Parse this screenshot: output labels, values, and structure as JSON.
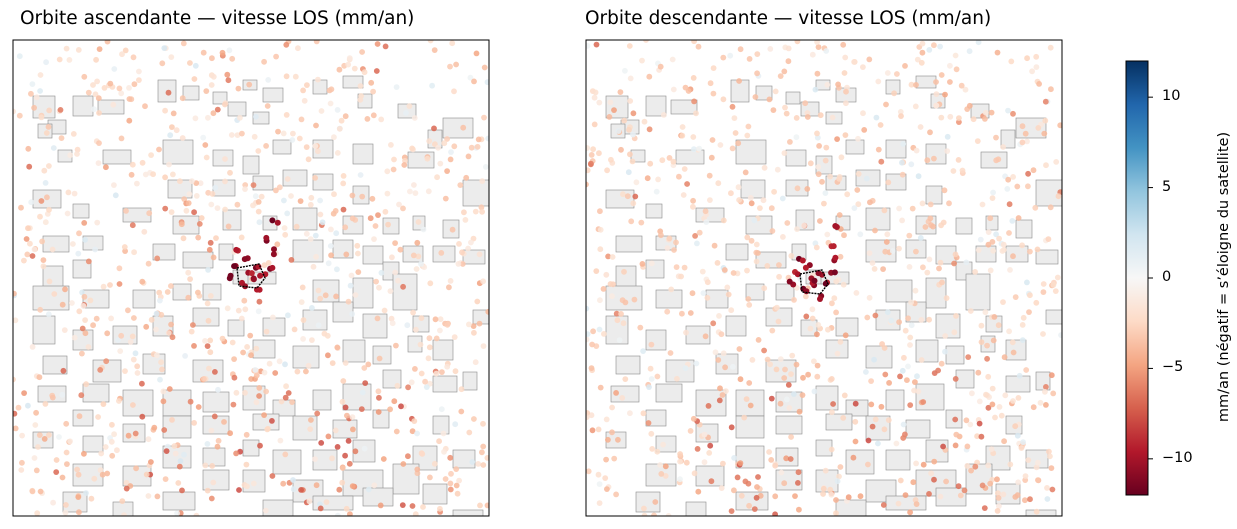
{
  "panels": [
    {
      "title": "Orbite ascendante — vitesse LOS (mm/an)"
    },
    {
      "title": "Orbite descendante — vitesse LOS (mm/an)"
    }
  ],
  "colorbar": {
    "label": "mm/an (négatif = s’éloigne du satellite)",
    "min": -12,
    "max": 12,
    "ticks": [
      {
        "value": 10,
        "label": "10"
      },
      {
        "value": 5,
        "label": "5"
      },
      {
        "value": 0,
        "label": "0"
      },
      {
        "value": -5,
        "label": "−5"
      },
      {
        "value": -10,
        "label": "−10"
      }
    ],
    "colormap": "RdBu",
    "colors": [
      "#67001f",
      "#b2182b",
      "#d6604d",
      "#f4a582",
      "#fddbc7",
      "#f7f7f7",
      "#d1e5f0",
      "#92c5de",
      "#4393c3",
      "#2166ac",
      "#053061"
    ]
  },
  "map_style": {
    "building_fill": "#ececec",
    "building_stroke": "#8a8a8a",
    "highlight_stroke": "#000000"
  }
}
